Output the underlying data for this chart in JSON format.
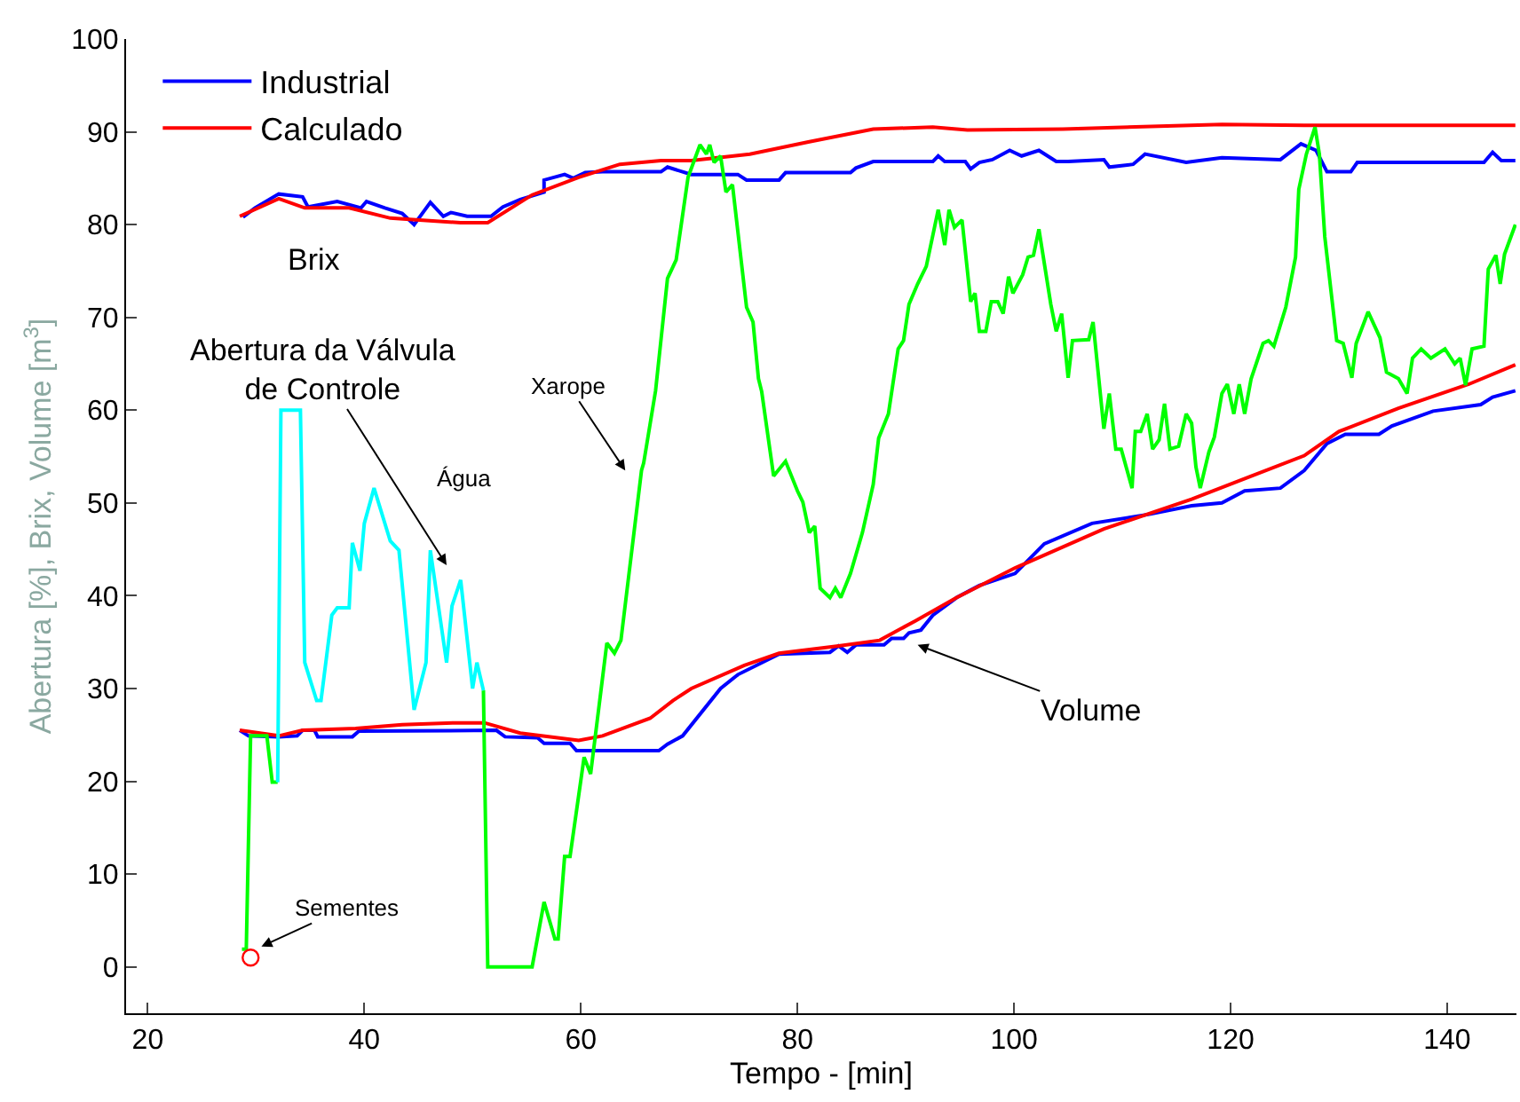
{
  "chart_data": {
    "type": "line",
    "xlabel": "Tempo - [min]",
    "ylabel": "Abertura [%], Brix, Volume [m$^{3}$]",
    "xlim": [
      18,
      146.4
    ],
    "ylim": [
      -5,
      100
    ],
    "xticks": [
      20,
      40,
      60,
      80,
      100,
      120,
      140
    ],
    "yticks": [
      0,
      10,
      20,
      30,
      40,
      50,
      60,
      70,
      80,
      90,
      100
    ],
    "legend": "top left",
    "series": [
      {
        "name": "Industrial",
        "color": "#0000ff",
        "x": [
          28.8,
          29.9,
          32.1,
          34.3,
          34.8,
          37.5,
          39.7,
          40.2,
          41.9,
          43.5,
          44.6,
          46.1,
          47.3,
          48.0,
          49.5,
          51.7,
          52.8,
          54.4,
          56.6,
          56.6,
          58.5,
          59.3,
          60.4,
          62.0,
          67.4,
          68.0,
          70.2,
          74.5,
          75.3,
          78.3,
          78.9,
          84.9,
          85.4,
          87.0,
          92.5,
          93.0,
          93.6,
          95.5,
          96.0,
          96.8,
          98.0,
          99.6,
          100.7,
          102.3,
          103.9,
          105.0,
          108.3,
          108.8,
          111.0,
          112.1,
          115.9,
          119.2,
          124.6,
          126.5,
          127.9,
          128.9,
          131.1,
          131.7,
          143.4,
          144.2,
          145.0,
          146.3
        ],
        "values": [
          80.8,
          81.8,
          83.3,
          83.0,
          81.9,
          82.5,
          81.8,
          82.5,
          81.8,
          81.2,
          80.0,
          82.4,
          80.9,
          81.3,
          80.9,
          80.9,
          81.9,
          82.7,
          83.5,
          84.8,
          85.4,
          85.0,
          85.6,
          85.7,
          85.7,
          86.2,
          85.4,
          85.4,
          84.8,
          84.8,
          85.6,
          85.6,
          86.1,
          86.8,
          86.8,
          87.4,
          86.8,
          86.8,
          86.0,
          86.7,
          87.0,
          88.0,
          87.4,
          88.0,
          86.8,
          86.8,
          87.0,
          86.2,
          86.5,
          87.6,
          86.7,
          87.2,
          87.0,
          88.7,
          88.0,
          85.7,
          85.7,
          86.7,
          86.7,
          87.8,
          86.9,
          86.9
        ]
      },
      {
        "name": "Calculado",
        "color": "#ff0000",
        "x": [
          28.5,
          32.1,
          34.5,
          38.6,
          42.4,
          45.1,
          48.9,
          51.4,
          55.5,
          59.8,
          63.6,
          67.4,
          70.2,
          75.6,
          81.0,
          87.0,
          92.5,
          95.7,
          104.5,
          119.2,
          126.8,
          146.3
        ],
        "values": [
          80.9,
          82.8,
          81.8,
          81.8,
          80.7,
          80.5,
          80.2,
          80.2,
          83.2,
          85.1,
          86.5,
          86.9,
          86.9,
          87.6,
          88.9,
          90.3,
          90.5,
          90.2,
          90.3,
          90.8,
          90.7,
          90.7
        ]
      },
      {
        "color": "#0000ff",
        "x": [
          28.5,
          29.3,
          32.1,
          33.8,
          34.3,
          35.4,
          35.7,
          38.9,
          39.5,
          52.2,
          53.0,
          56.0,
          56.6,
          59.0,
          59.6,
          67.2,
          68.0,
          69.4,
          72.9,
          74.5,
          78.3,
          83.0,
          83.8,
          84.6,
          85.4,
          88.0,
          88.7,
          89.8,
          90.3,
          91.4,
          92.5,
          94.7,
          96.8,
          100.1,
          102.8,
          107.2,
          112.6,
          116.4,
          119.2,
          121.3,
          124.6,
          126.8,
          128.9,
          130.6,
          133.7,
          134.9,
          138.7,
          143.1,
          144.2,
          146.3
        ],
        "values": [
          25.5,
          24.9,
          24.8,
          24.9,
          25.5,
          25.5,
          24.8,
          24.8,
          25.4,
          25.5,
          24.8,
          24.7,
          24.1,
          24.1,
          23.3,
          23.3,
          24.0,
          24.9,
          30.0,
          31.5,
          33.7,
          33.9,
          34.6,
          33.9,
          34.7,
          34.7,
          35.4,
          35.4,
          36.0,
          36.3,
          37.9,
          39.8,
          41.1,
          42.4,
          45.6,
          47.8,
          48.8,
          49.7,
          50.0,
          51.3,
          51.6,
          53.5,
          56.4,
          57.4,
          57.4,
          58.3,
          59.9,
          60.6,
          61.4,
          62.1
        ]
      },
      {
        "color": "#ff0000",
        "x": [
          28.5,
          32.1,
          34.3,
          39.2,
          43.5,
          48.4,
          51.1,
          54.4,
          59.8,
          62.0,
          66.4,
          68.5,
          70.2,
          75.1,
          78.3,
          83.8,
          87.6,
          90.9,
          94.7,
          100.1,
          108.3,
          116.4,
          121.9,
          126.8,
          130.0,
          135.5,
          142.0,
          146.3
        ],
        "values": [
          25.5,
          24.9,
          25.5,
          25.7,
          26.1,
          26.3,
          26.3,
          25.2,
          24.4,
          24.9,
          26.8,
          28.7,
          30.0,
          32.5,
          33.8,
          34.6,
          35.2,
          37.3,
          39.8,
          43.0,
          47.2,
          50.4,
          52.9,
          55.1,
          57.7,
          60.2,
          62.8,
          64.9
        ]
      },
      {
        "color": "#00ff00",
        "x": [
          28.7,
          29.1,
          29.5,
          31.0,
          31.5,
          32.0,
          40.0,
          51.0,
          51.4,
          55.5,
          56.6,
          57.6,
          57.9,
          58.5,
          59.0,
          60.3,
          60.9,
          62.4,
          63.1,
          63.7,
          65.6,
          65.8,
          66.9,
          68.0,
          68.8,
          69.9,
          71.0,
          71.6,
          71.9,
          72.3,
          72.9,
          73.4,
          74.0,
          75.3,
          75.9,
          76.4,
          76.7,
          77.8,
          78.9,
          80.0,
          80.5,
          81.1,
          81.6,
          82.1,
          83.0,
          83.5,
          84.0,
          84.9,
          86.0,
          87.0,
          87.5,
          88.4,
          89.3,
          89.8,
          90.3,
          91.1,
          91.9,
          93.0,
          93.6,
          94.0,
          94.5,
          95.2,
          96.0,
          96.4,
          96.8,
          97.4,
          97.9,
          98.5,
          99.0,
          99.5,
          99.9,
          100.8,
          101.3,
          101.8,
          102.3,
          103.4,
          103.9,
          104.4,
          105.0,
          105.4,
          106.9,
          107.3,
          108.3,
          108.8,
          109.4,
          109.9,
          110.9,
          111.2,
          111.7,
          112.3,
          112.8,
          113.4,
          113.9,
          114.4,
          115.2,
          115.9,
          116.4,
          116.8,
          117.2,
          118.0,
          118.5,
          119.2,
          119.7,
          120.3,
          120.8,
          121.3,
          121.9,
          123.0,
          123.5,
          124.0,
          125.1,
          126.0,
          126.3,
          127.0,
          127.8,
          128.2,
          128.7,
          129.8,
          130.4,
          131.2,
          131.6,
          132.7,
          133.8,
          134.4,
          135.5,
          136.3,
          136.8,
          137.6,
          138.5,
          139.8,
          140.7,
          141.2,
          141.7,
          142.3,
          143.4,
          143.8,
          144.5,
          144.9,
          145.3,
          146.3
        ],
        "values": [
          1.9,
          1.9,
          24.9,
          24.9,
          19.9,
          19.9,
          null,
          29.8,
          0,
          0,
          7.0,
          3.0,
          3.0,
          11.9,
          11.9,
          22.6,
          20.8,
          34.9,
          33.8,
          35.2,
          53.5,
          54.3,
          62.1,
          74.2,
          76.2,
          85.1,
          88.6,
          87.6,
          88.6,
          86.7,
          87.4,
          83.5,
          84.3,
          71.1,
          69.5,
          63.4,
          62.0,
          52.9,
          54.5,
          51.3,
          50.1,
          46.8,
          47.5,
          40.8,
          39.8,
          40.8,
          39.8,
          42.4,
          46.8,
          52.0,
          57.0,
          59.6,
          66.6,
          67.5,
          71.4,
          73.6,
          75.5,
          81.6,
          77.8,
          81.6,
          79.7,
          80.5,
          71.7,
          72.6,
          68.5,
          68.5,
          71.7,
          71.7,
          70.4,
          74.4,
          72.6,
          74.6,
          76.5,
          76.7,
          79.5,
          71.4,
          68.5,
          70.4,
          63.5,
          67.5,
          67.6,
          69.5,
          58.0,
          61.8,
          55.8,
          55.8,
          51.6,
          57.7,
          57.7,
          59.6,
          55.8,
          56.8,
          60.7,
          55.8,
          56.1,
          59.6,
          58.6,
          53.9,
          51.6,
          55.5,
          57.1,
          61.8,
          62.8,
          59.6,
          62.8,
          59.6,
          63.4,
          67.2,
          67.5,
          66.9,
          71.1,
          76.5,
          83.8,
          87.6,
          90.5,
          87.6,
          78.7,
          67.5,
          67.2,
          63.5,
          67.2,
          70.6,
          67.8,
          64.1,
          63.4,
          61.8,
          65.6,
          66.6,
          65.6,
          66.6,
          65.0,
          65.6,
          62.7,
          66.6,
          66.9,
          75.2,
          76.7,
          73.6,
          76.8,
          80.0
        ]
      },
      {
        "color": "#00ffff",
        "x": [
          32.0,
          32.3,
          34.1,
          34.5,
          35.6,
          36.0,
          37.0,
          37.5,
          38.6,
          38.9,
          39.6,
          40.0,
          40.9,
          42.4,
          43.2,
          44.6,
          45.7,
          46.1,
          47.6,
          48.1,
          48.9,
          50.0,
          50.4,
          51.0
        ],
        "values": [
          19.9,
          60,
          60,
          32.8,
          28.7,
          28.7,
          37.9,
          38.7,
          38.7,
          45.7,
          42.7,
          47.8,
          51.6,
          45.9,
          44.9,
          27.7,
          32.8,
          44.9,
          32.8,
          38.9,
          41.7,
          30.0,
          32.8,
          29.8
        ]
      },
      {
        "type": "scatter",
        "marker": "circle",
        "color": "#ff0000",
        "x": [
          29.5
        ],
        "values": [
          1.0
        ]
      }
    ],
    "annotations": [
      "Brix",
      "Abertura da Válvula\nde Controle",
      "Água",
      "Xarope",
      "Volume",
      {
        "text": "Sementes",
        "x": 30.5,
        "y": 2.2
      }
    ]
  }
}
